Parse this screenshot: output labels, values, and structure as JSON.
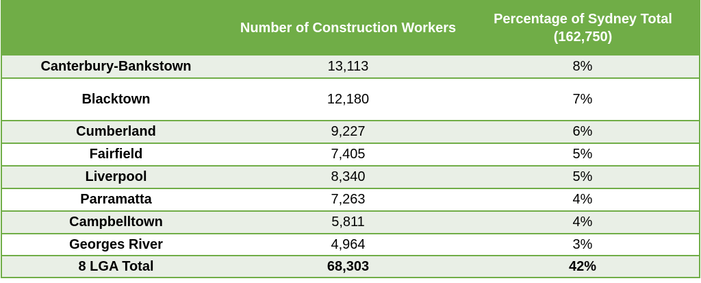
{
  "table": {
    "headers": [
      "",
      "Number of Construction Workers",
      "Percentage of Sydney Total (162,750)"
    ],
    "rows": [
      [
        "Canterbury-Bankstown",
        "13,113",
        "8%"
      ],
      [
        "Blacktown",
        "12,180",
        "7%"
      ],
      [
        "Cumberland",
        "9,227",
        "6%"
      ],
      [
        "Fairfield",
        "7,405",
        "5%"
      ],
      [
        "Liverpool",
        "8,340",
        "5%"
      ],
      [
        "Parramatta",
        "7,263",
        "4%"
      ],
      [
        "Campbelltown",
        "5,811",
        "4%"
      ],
      [
        "Georges River",
        "4,964",
        "3%"
      ]
    ],
    "total": [
      "8 LGA Total",
      "68,303",
      "42%"
    ]
  },
  "colors": {
    "header_bg": "#70ad47",
    "border": "#70ad47",
    "band_bg": "#e9efe6"
  }
}
